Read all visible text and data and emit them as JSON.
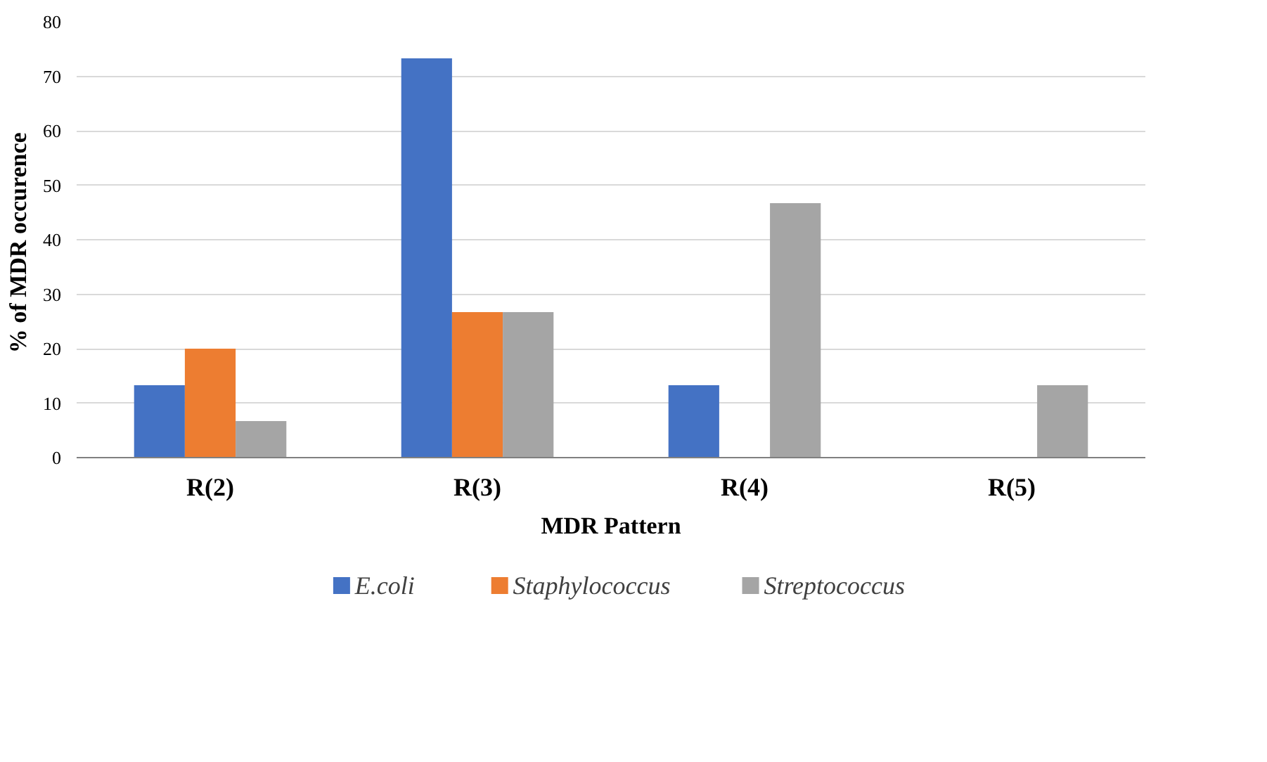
{
  "chart_data": {
    "type": "bar",
    "xlabel": "MDR Pattern",
    "ylabel": "% of  MDR occurence",
    "categories": [
      "R(2)",
      "R(3)",
      "R(4)",
      "R(5)"
    ],
    "series": [
      {
        "name": "E.coli",
        "color": "#4472c4",
        "values": [
          13.3,
          73.3,
          13.3,
          0
        ]
      },
      {
        "name": "Staphylococcus",
        "color": "#ed7d31",
        "values": [
          20,
          26.7,
          0,
          0
        ]
      },
      {
        "name": "Streptococcus",
        "color": "#a5a5a5",
        "values": [
          6.7,
          26.7,
          46.7,
          13.3
        ]
      }
    ],
    "ylim": [
      0,
      80
    ],
    "yticks": [
      0,
      10,
      20,
      30,
      40,
      50,
      60,
      70,
      80
    ],
    "grid": "y",
    "legend": "bottom"
  }
}
